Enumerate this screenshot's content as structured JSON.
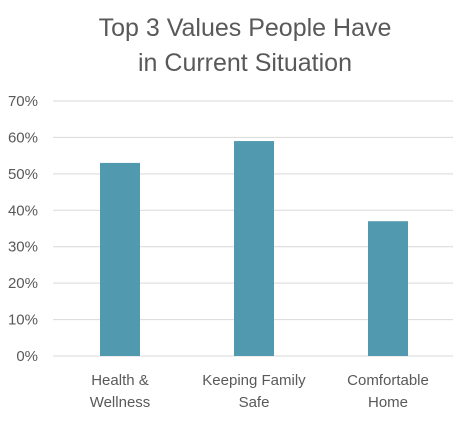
{
  "chart_data": {
    "type": "bar",
    "title_lines": [
      "Top 3 Values People Have",
      "in Current Situation"
    ],
    "categories": [
      [
        "Health &",
        "Wellness"
      ],
      [
        "Keeping Family",
        "Safe"
      ],
      [
        "Comfortable",
        "Home"
      ]
    ],
    "values": [
      0.53,
      0.59,
      0.37
    ],
    "ylim": [
      0,
      0.7
    ],
    "yticks": [
      0,
      0.1,
      0.2,
      0.3,
      0.4,
      0.5,
      0.6,
      0.7
    ],
    "ytick_labels": [
      "0%",
      "10%",
      "20%",
      "30%",
      "40%",
      "50%",
      "60%",
      "70%"
    ],
    "grid": true,
    "legend": "none",
    "colors": {
      "bar": "#5199AE",
      "grid": "#D9D9D9",
      "text": "#595959"
    }
  }
}
